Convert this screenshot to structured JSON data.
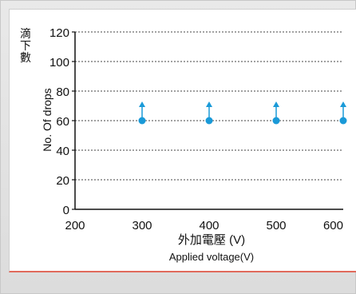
{
  "chart_data": {
    "type": "scatter",
    "x": [
      300,
      400,
      500,
      600
    ],
    "y": [
      60,
      60,
      60,
      60
    ],
    "marker_note": "▲",
    "xlim": [
      200,
      600
    ],
    "ylim": [
      0,
      120
    ],
    "xticks": [
      200,
      300,
      400,
      500,
      600
    ],
    "yticks": [
      0,
      20,
      40,
      60,
      80,
      100,
      120
    ],
    "xlabel_cn": "外加電壓 (V)",
    "xlabel_en": "Applied voltage(V)",
    "ylabel_cn": "滴下數",
    "ylabel_en": "No. Of drops",
    "grid": "horizontal dashed",
    "colors": {
      "marker": "#1a9ad8",
      "axis": "#111111",
      "frame_accent": "#e06a5b"
    }
  }
}
